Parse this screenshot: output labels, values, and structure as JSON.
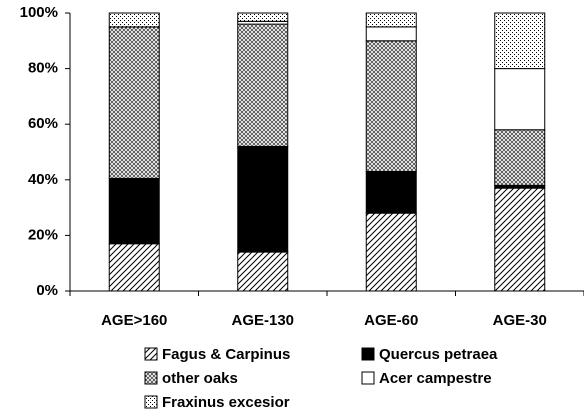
{
  "chart_data": {
    "type": "stacked-bar",
    "categories": [
      "AGE>160",
      "AGE-130",
      "AGE-60",
      "AGE-30"
    ],
    "series": [
      {
        "name": "Fagus & Carpinus",
        "color": "#000000",
        "pattern": "hatch",
        "values": [
          17,
          14,
          28,
          37
        ]
      },
      {
        "name": "Quercus petraea",
        "color": "#000000",
        "pattern": "solid",
        "values": [
          23.5,
          38,
          15,
          1
        ]
      },
      {
        "name": "other oaks",
        "color": "#000000",
        "pattern": "crosshatch",
        "values": [
          54.5,
          44,
          47,
          20
        ]
      },
      {
        "name": "Acer campestre",
        "color": "#000000",
        "pattern": "white",
        "values": [
          0,
          1,
          5,
          22
        ]
      },
      {
        "name": "Fraxinus excesior",
        "color": "#000000",
        "pattern": "dots",
        "values": [
          5,
          3,
          5,
          20
        ]
      }
    ],
    "ylim": [
      0,
      100
    ],
    "yticks": [
      {
        "value": 0,
        "label": "0%"
      },
      {
        "value": 20,
        "label": "20%"
      },
      {
        "value": 40,
        "label": "40%"
      },
      {
        "value": 60,
        "label": "60%"
      },
      {
        "value": 80,
        "label": "80%"
      },
      {
        "value": 100,
        "label": "100%"
      }
    ],
    "grid": false
  }
}
